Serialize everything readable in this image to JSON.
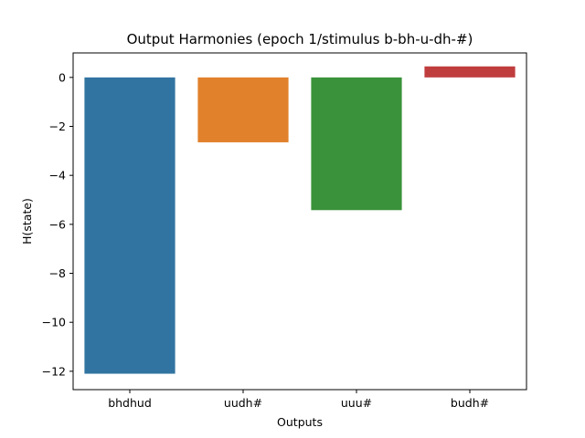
{
  "chart_data": {
    "type": "bar",
    "title": "Output Harmonies (epoch 1/stimulus b-bh-u-dh-#)",
    "xlabel": "Outputs",
    "ylabel": "H(state)",
    "categories": [
      "bhdhud",
      "uudh#",
      "uuu#",
      "budh#"
    ],
    "values": [
      -12.1,
      -2.65,
      -5.42,
      0.45
    ],
    "colors": [
      "#3274a1",
      "#e1812c",
      "#3a923a",
      "#c03d3e"
    ],
    "ylim": [
      -12.75,
      1.0
    ],
    "yticks": [
      0,
      -2,
      -4,
      -6,
      -8,
      -10,
      -12
    ],
    "ytick_labels": [
      "0",
      "−2",
      "−4",
      "−6",
      "−8",
      "−10",
      "−12"
    ],
    "grid": false,
    "legend": "none"
  }
}
